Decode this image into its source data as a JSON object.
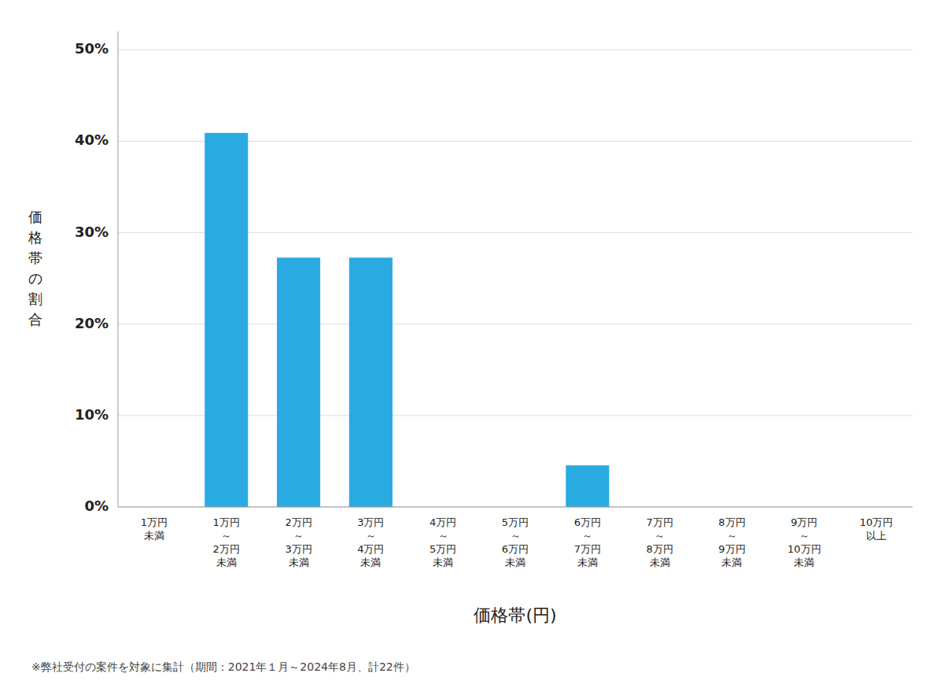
{
  "chart_data": {
    "type": "bar",
    "categories": [
      "1万円\n未満",
      "1万円\n～\n2万円\n未満",
      "2万円\n～\n3万円\n未満",
      "3万円\n～\n4万円\n未満",
      "4万円\n～\n5万円\n未満",
      "5万円\n～\n6万円\n未満",
      "6万円\n～\n7万円\n未満",
      "7万円\n～\n8万円\n未満",
      "8万円\n～\n9万円\n未満",
      "9万円\n～\n10万円\n未満",
      "10万円\n以上"
    ],
    "values": [
      0.0,
      0.4091,
      0.2727,
      0.2727,
      0.0,
      0.0,
      0.0455,
      0.0,
      0.0,
      0.0,
      0.0
    ],
    "color": "#29ABE2",
    "ylabel": "価\n格\n帯\nの\n割\n合",
    "xlabel": "価格帯(円)",
    "footnote": "※弊社受付の案件を対象に集計（期間：2021年１月～2024年8月、計22件）",
    "ylim": [
      0,
      0.52
    ],
    "yticks": [
      {
        "value": 0.0,
        "label": "0%"
      },
      {
        "value": 0.1,
        "label": "10%"
      },
      {
        "value": 0.2,
        "label": "20%"
      },
      {
        "value": 0.3,
        "label": "30%"
      },
      {
        "value": 0.4,
        "label": "40%"
      },
      {
        "value": 0.5,
        "label": "50%"
      }
    ],
    "grid": true
  }
}
